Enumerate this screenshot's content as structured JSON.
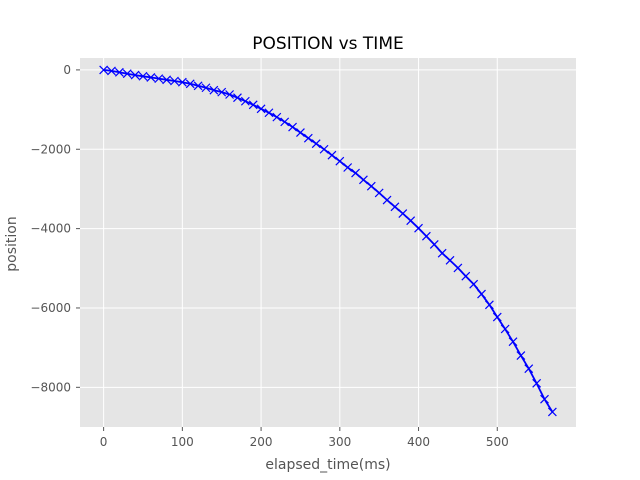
{
  "chart_data": {
    "type": "line",
    "title": "POSITION vs TIME",
    "xlabel": "elapsed_time(ms)",
    "ylabel": "position",
    "xlim": [
      -30,
      600
    ],
    "ylim": [
      -9000,
      300
    ],
    "xticks": [
      0,
      100,
      200,
      300,
      400,
      500
    ],
    "yticks": [
      0,
      -2000,
      -4000,
      -6000,
      -8000
    ],
    "xtick_labels": [
      "0",
      "100",
      "200",
      "300",
      "400",
      "500"
    ],
    "ytick_labels": [
      "0",
      "−2000",
      "−4000",
      "−6000",
      "−8000"
    ],
    "grid": true,
    "background": "#e5e5e5",
    "line_color": "#0000ff",
    "marker_color": "#0000ff",
    "marker": "x",
    "series": [
      {
        "x": [
          0,
          10,
          20,
          30,
          40,
          50,
          60,
          70,
          80,
          90,
          100,
          110,
          120,
          130,
          140,
          150,
          160,
          170,
          180,
          190,
          200,
          210,
          220,
          230,
          240,
          250,
          260,
          270,
          280,
          290,
          300,
          310,
          320,
          330,
          340,
          350,
          360,
          370,
          380,
          390,
          400,
          410,
          420,
          430,
          440,
          450,
          460,
          470,
          480,
          490,
          500,
          510,
          520,
          530,
          540,
          550,
          560,
          570
        ],
        "values": [
          0,
          -25,
          -60,
          -95,
          -130,
          -160,
          -190,
          -220,
          -250,
          -280,
          -310,
          -350,
          -400,
          -450,
          -510,
          -560,
          -620,
          -700,
          -790,
          -880,
          -980,
          -1080,
          -1190,
          -1310,
          -1440,
          -1580,
          -1720,
          -1860,
          -2000,
          -2150,
          -2300,
          -2460,
          -2600,
          -2770,
          -2930,
          -3100,
          -3280,
          -3450,
          -3620,
          -3800,
          -3990,
          -4190,
          -4400,
          -4620,
          -4800,
          -4990,
          -5200,
          -5400,
          -5650,
          -5920,
          -6230,
          -6530,
          -6850,
          -7200,
          -7530,
          -7900,
          -8300,
          -8620
        ]
      }
    ]
  }
}
